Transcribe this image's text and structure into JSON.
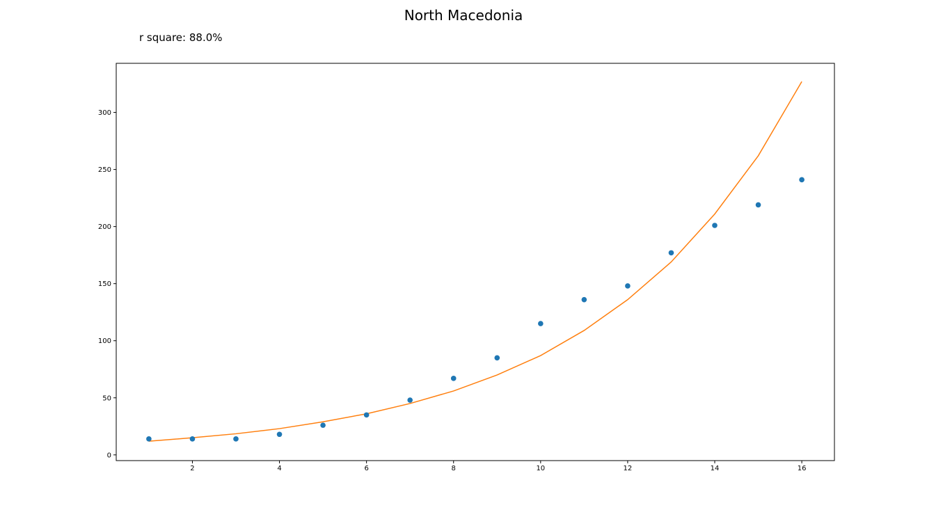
{
  "chart_data": {
    "type": "scatter",
    "title": "North Macedonia",
    "annotation": "r square: 88.0%",
    "xlabel": "",
    "ylabel": "",
    "xlim": [
      0.25,
      16.75
    ],
    "ylim": [
      -5,
      343
    ],
    "x_ticks": [
      2,
      4,
      6,
      8,
      10,
      12,
      14,
      16
    ],
    "y_ticks": [
      0,
      50,
      100,
      150,
      200,
      250,
      300
    ],
    "grid": false,
    "series": [
      {
        "kind": "scatter",
        "color": "#1f77b4",
        "x": [
          1,
          2,
          3,
          4,
          5,
          6,
          7,
          8,
          9,
          10,
          11,
          12,
          13,
          14,
          15,
          16
        ],
        "y": [
          14,
          14,
          14,
          18,
          26,
          35,
          48,
          67,
          85,
          115,
          136,
          148,
          177,
          201,
          219,
          241
        ]
      },
      {
        "kind": "line",
        "color": "#ff7f0e",
        "x": [
          1,
          2,
          3,
          4,
          5,
          6,
          7,
          8,
          9,
          10,
          11,
          12,
          13,
          14,
          15,
          16
        ],
        "y": [
          12,
          15,
          18.5,
          23,
          29,
          36,
          45,
          56,
          70,
          87,
          109,
          136,
          169,
          211,
          262,
          327
        ]
      }
    ]
  }
}
